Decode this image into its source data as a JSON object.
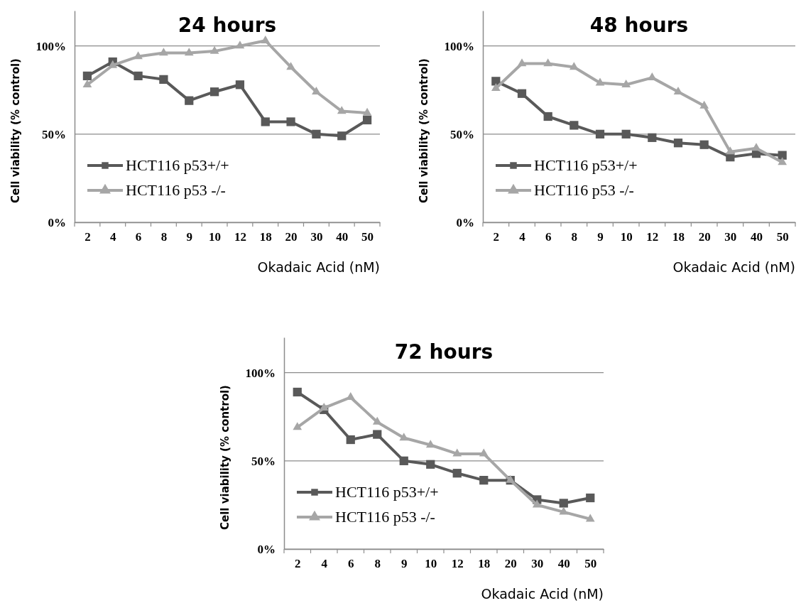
{
  "chart_data": [
    {
      "type": "line",
      "title": "24 hours",
      "xlabel": "Okadaic Acid (nM)",
      "ylabel": "Cell viability  (% control)",
      "categories": [
        "2",
        "4",
        "6",
        "8",
        "9",
        "10",
        "12",
        "18",
        "20",
        "30",
        "40",
        "50"
      ],
      "ylim": [
        0,
        120
      ],
      "yticks": [
        {
          "value": 0,
          "label": "0%"
        },
        {
          "value": 50,
          "label": "50%"
        },
        {
          "value": 100,
          "label": "100%"
        }
      ],
      "grid": "y",
      "legend": "bottom left",
      "series": [
        {
          "name": "HCT116 p53+/+",
          "color": "#595959",
          "marker": "square",
          "values": [
            83,
            91,
            83,
            81,
            69,
            74,
            78,
            57,
            57,
            50,
            49,
            58
          ]
        },
        {
          "name": "HCT116 p53 -/-",
          "color": "#a6a6a6",
          "marker": "triangle",
          "values": [
            78,
            89,
            94,
            96,
            96,
            97,
            100,
            103,
            88,
            74,
            63,
            62
          ]
        }
      ]
    },
    {
      "type": "line",
      "title": "48 hours",
      "xlabel": "Okadaic Acid (nM)",
      "ylabel": "Cell viability  (% control)",
      "categories": [
        "2",
        "4",
        "6",
        "8",
        "9",
        "10",
        "12",
        "18",
        "20",
        "30",
        "40",
        "50"
      ],
      "ylim": [
        0,
        120
      ],
      "yticks": [
        {
          "value": 0,
          "label": "0%"
        },
        {
          "value": 50,
          "label": "50%"
        },
        {
          "value": 100,
          "label": "100%"
        }
      ],
      "grid": "y",
      "legend": "bottom left",
      "series": [
        {
          "name": "HCT116 p53+/+",
          "color": "#595959",
          "marker": "square",
          "values": [
            80,
            73,
            60,
            55,
            50,
            50,
            48,
            45,
            44,
            37,
            39,
            38
          ]
        },
        {
          "name": "HCT116 p53 -/-",
          "color": "#a6a6a6",
          "marker": "triangle",
          "values": [
            76,
            90,
            90,
            88,
            79,
            78,
            82,
            74,
            66,
            40,
            42,
            34
          ]
        }
      ]
    },
    {
      "type": "line",
      "title": "72 hours",
      "xlabel": "Okadaic Acid (nM)",
      "ylabel": "Cell viability  (% control)",
      "categories": [
        "2",
        "4",
        "6",
        "8",
        "9",
        "10",
        "12",
        "18",
        "20",
        "30",
        "40",
        "50"
      ],
      "ylim": [
        0,
        120
      ],
      "yticks": [
        {
          "value": 0,
          "label": "0%"
        },
        {
          "value": 50,
          "label": "50%"
        },
        {
          "value": 100,
          "label": "100%"
        }
      ],
      "grid": "y",
      "legend": "bottom left",
      "series": [
        {
          "name": "HCT116 p53+/+",
          "color": "#595959",
          "marker": "square",
          "values": [
            89,
            79,
            62,
            65,
            50,
            48,
            43,
            39,
            39,
            28,
            26,
            29
          ]
        },
        {
          "name": "HCT116 p53 -/-",
          "color": "#a6a6a6",
          "marker": "triangle",
          "values": [
            69,
            80,
            86,
            72,
            63,
            59,
            54,
            54,
            39,
            25,
            21,
            17
          ]
        }
      ]
    }
  ]
}
